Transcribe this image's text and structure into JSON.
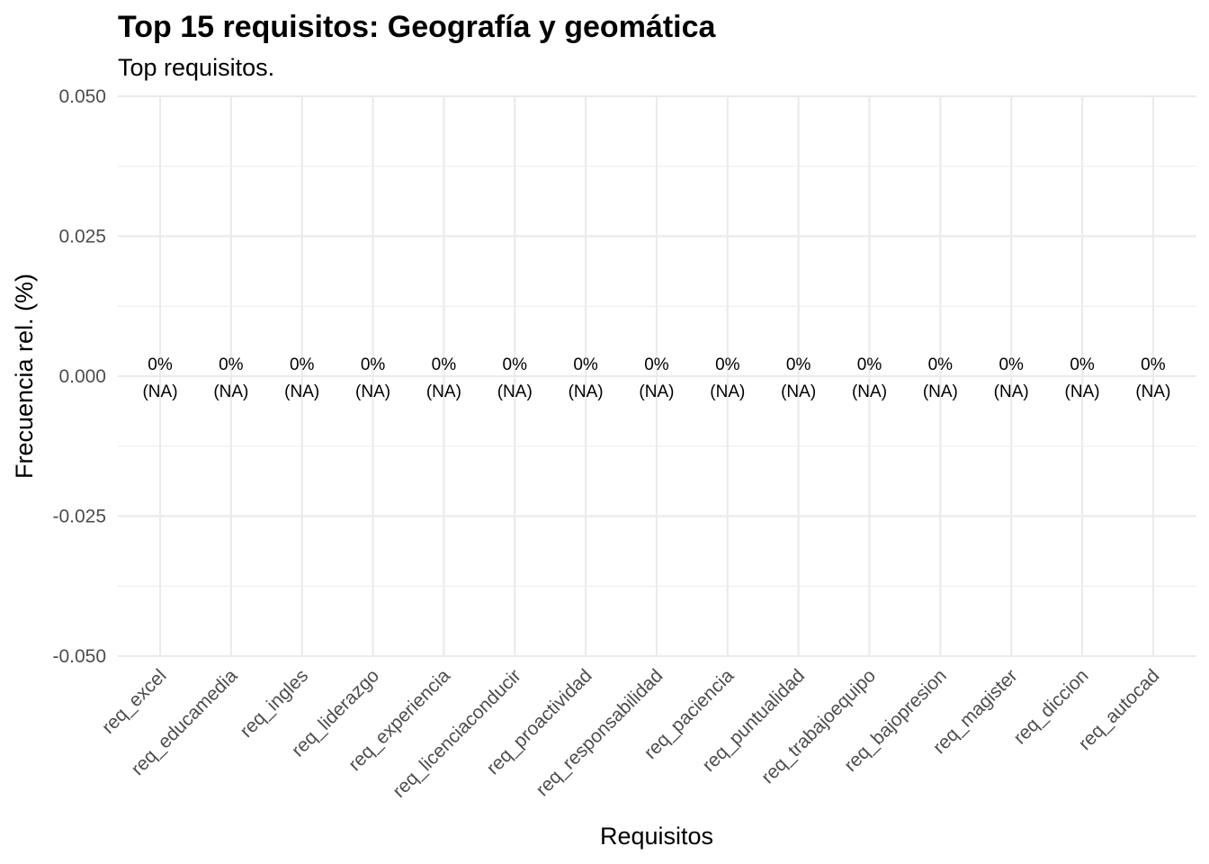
{
  "chart_data": {
    "type": "bar",
    "title": "Top 15 requisitos: Geografía y geomática",
    "subtitle": "Top requisitos.",
    "xlabel": "Requisitos",
    "ylabel": "Frecuencia rel. (%)",
    "categories": [
      "req_excel",
      "req_educamedia",
      "req_ingles",
      "req_liderazgo",
      "req_experiencia",
      "req_licenciaconducir",
      "req_proactividad",
      "req_responsabilidad",
      "req_paciencia",
      "req_puntualidad",
      "req_trabajoequipo",
      "req_bajopresion",
      "req_magister",
      "req_diccion",
      "req_autocad"
    ],
    "values": [
      0,
      0,
      0,
      0,
      0,
      0,
      0,
      0,
      0,
      0,
      0,
      0,
      0,
      0,
      0
    ],
    "data_labels": [
      {
        "pct": "0%",
        "count": "(NA)"
      },
      {
        "pct": "0%",
        "count": "(NA)"
      },
      {
        "pct": "0%",
        "count": "(NA)"
      },
      {
        "pct": "0%",
        "count": "(NA)"
      },
      {
        "pct": "0%",
        "count": "(NA)"
      },
      {
        "pct": "0%",
        "count": "(NA)"
      },
      {
        "pct": "0%",
        "count": "(NA)"
      },
      {
        "pct": "0%",
        "count": "(NA)"
      },
      {
        "pct": "0%",
        "count": "(NA)"
      },
      {
        "pct": "0%",
        "count": "(NA)"
      },
      {
        "pct": "0%",
        "count": "(NA)"
      },
      {
        "pct": "0%",
        "count": "(NA)"
      },
      {
        "pct": "0%",
        "count": "(NA)"
      },
      {
        "pct": "0%",
        "count": "(NA)"
      },
      {
        "pct": "0%",
        "count": "(NA)"
      }
    ],
    "y_ticks": [
      0.05,
      0.025,
      0.0,
      -0.025,
      -0.05
    ],
    "y_tick_labels": [
      "0.050",
      "0.025",
      "0.000",
      "-0.025",
      "-0.050"
    ],
    "ylim": [
      -0.05,
      0.05
    ],
    "grid": true,
    "legend": "none"
  }
}
